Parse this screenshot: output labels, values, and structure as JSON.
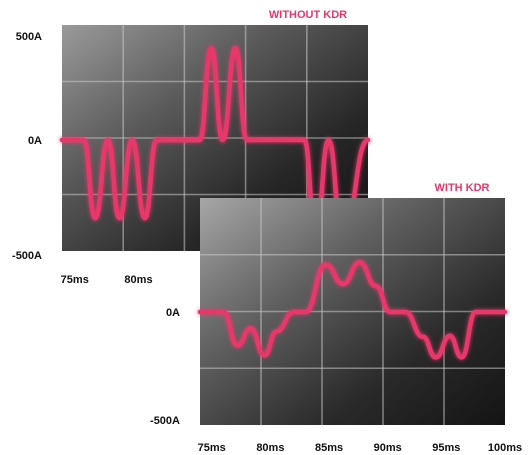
{
  "accent_color": "#e8386b",
  "chart_data": [
    {
      "type": "line",
      "title": "WITHOUT KDR",
      "y_ticks": [
        {
          "value": 500,
          "label": "500A"
        },
        {
          "value": 0,
          "label": "0A"
        },
        {
          "value": -500,
          "label": "-500A"
        }
      ],
      "x_ticks": [
        {
          "value": 75,
          "label": "75ms"
        },
        {
          "value": 80,
          "label": "80ms"
        }
      ],
      "xlim": [
        74,
        98
      ],
      "ylim": [
        -580,
        580
      ],
      "grid": true,
      "series": [
        {
          "x": [
            74,
            75.7,
            76.6,
            77.6,
            78.5,
            79.5,
            80.5,
            81.4,
            84.8,
            85.7,
            86.6,
            87.6,
            88.5,
            89.4,
            93,
            93.9,
            94.9,
            96,
            98
          ],
          "y": [
            0,
            0,
            -340,
            0,
            -340,
            0,
            -340,
            0,
            0,
            400,
            0,
            400,
            0,
            0,
            0,
            -420,
            0,
            -420,
            0
          ]
        }
      ]
    },
    {
      "type": "line",
      "title": "WITH KDR",
      "y_ticks": [
        {
          "value": 0,
          "label": "0A"
        },
        {
          "value": -500,
          "label": "-500A"
        }
      ],
      "x_ticks": [
        {
          "value": 75,
          "label": "75ms"
        },
        {
          "value": 80,
          "label": "80ms"
        },
        {
          "value": 85,
          "label": "85ms"
        },
        {
          "value": 90,
          "label": "90ms"
        },
        {
          "value": 95,
          "label": "95ms"
        },
        {
          "value": 100,
          "label": "100ms"
        }
      ],
      "xlim": [
        74,
        100
      ],
      "ylim": [
        -580,
        580
      ],
      "grid": true,
      "series": [
        {
          "x": [
            74,
            76,
            77.2,
            78.3,
            79.5,
            80.5,
            82,
            83,
            84.7,
            86.2,
            87.6,
            89,
            90.2,
            91.5,
            93,
            94.1,
            95.3,
            96.3,
            97.5,
            100
          ],
          "y": [
            0,
            0,
            -155,
            -75,
            -200,
            -90,
            0,
            0,
            220,
            130,
            230,
            120,
            0,
            0,
            -115,
            -210,
            -110,
            -210,
            0,
            0
          ]
        }
      ]
    }
  ]
}
